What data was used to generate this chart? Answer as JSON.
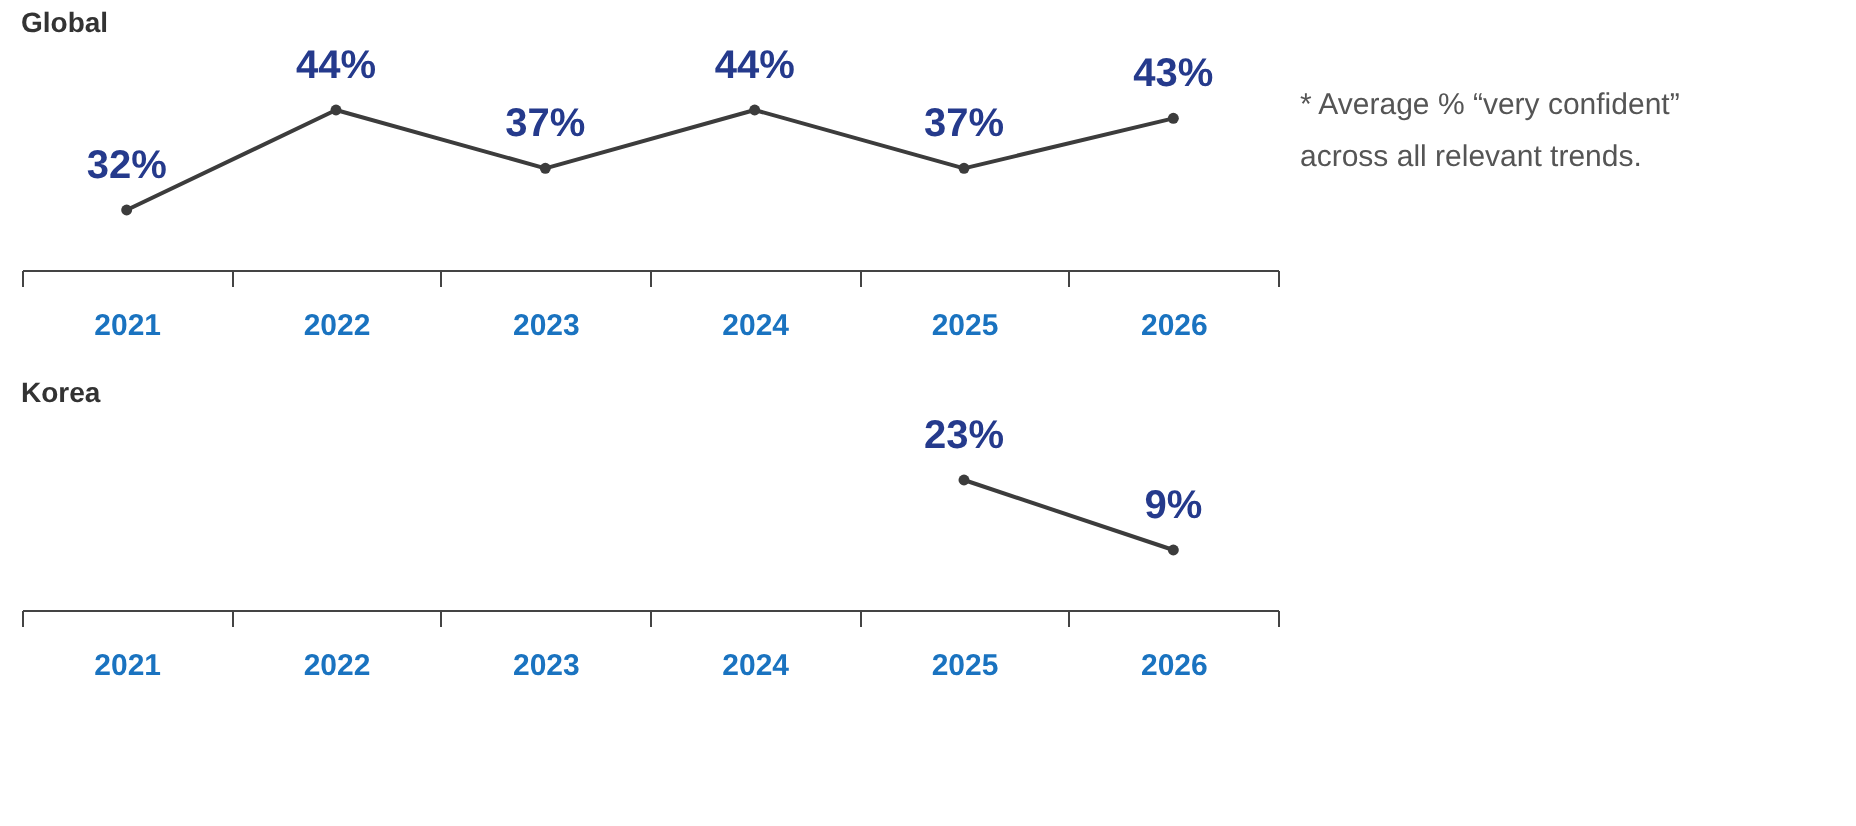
{
  "chart_data": [
    {
      "type": "line",
      "title": "Global",
      "categories": [
        "2021",
        "2022",
        "2023",
        "2024",
        "2025",
        "2026"
      ],
      "series": [
        {
          "color": "#3c3c3c",
          "values": [
            32,
            44,
            37,
            44,
            37,
            43
          ],
          "value_labels": [
            "32%",
            "44%",
            "37%",
            "44%",
            "37%",
            "43%"
          ]
        }
      ],
      "marker": "circle",
      "grid": false,
      "tick_labels": "x",
      "annotations": [
        "* Average % “very confident” across all relevant trends."
      ]
    },
    {
      "type": "line",
      "title": "Korea",
      "categories": [
        "2021",
        "2022",
        "2023",
        "2024",
        "2025",
        "2026"
      ],
      "series": [
        {
          "color": "#3c3c3c",
          "values": [
            null,
            null,
            null,
            null,
            23,
            9
          ],
          "value_labels": [
            null,
            null,
            null,
            null,
            "23%",
            "9%"
          ]
        }
      ],
      "marker": "circle",
      "grid": false,
      "tick_labels": "x"
    }
  ]
}
